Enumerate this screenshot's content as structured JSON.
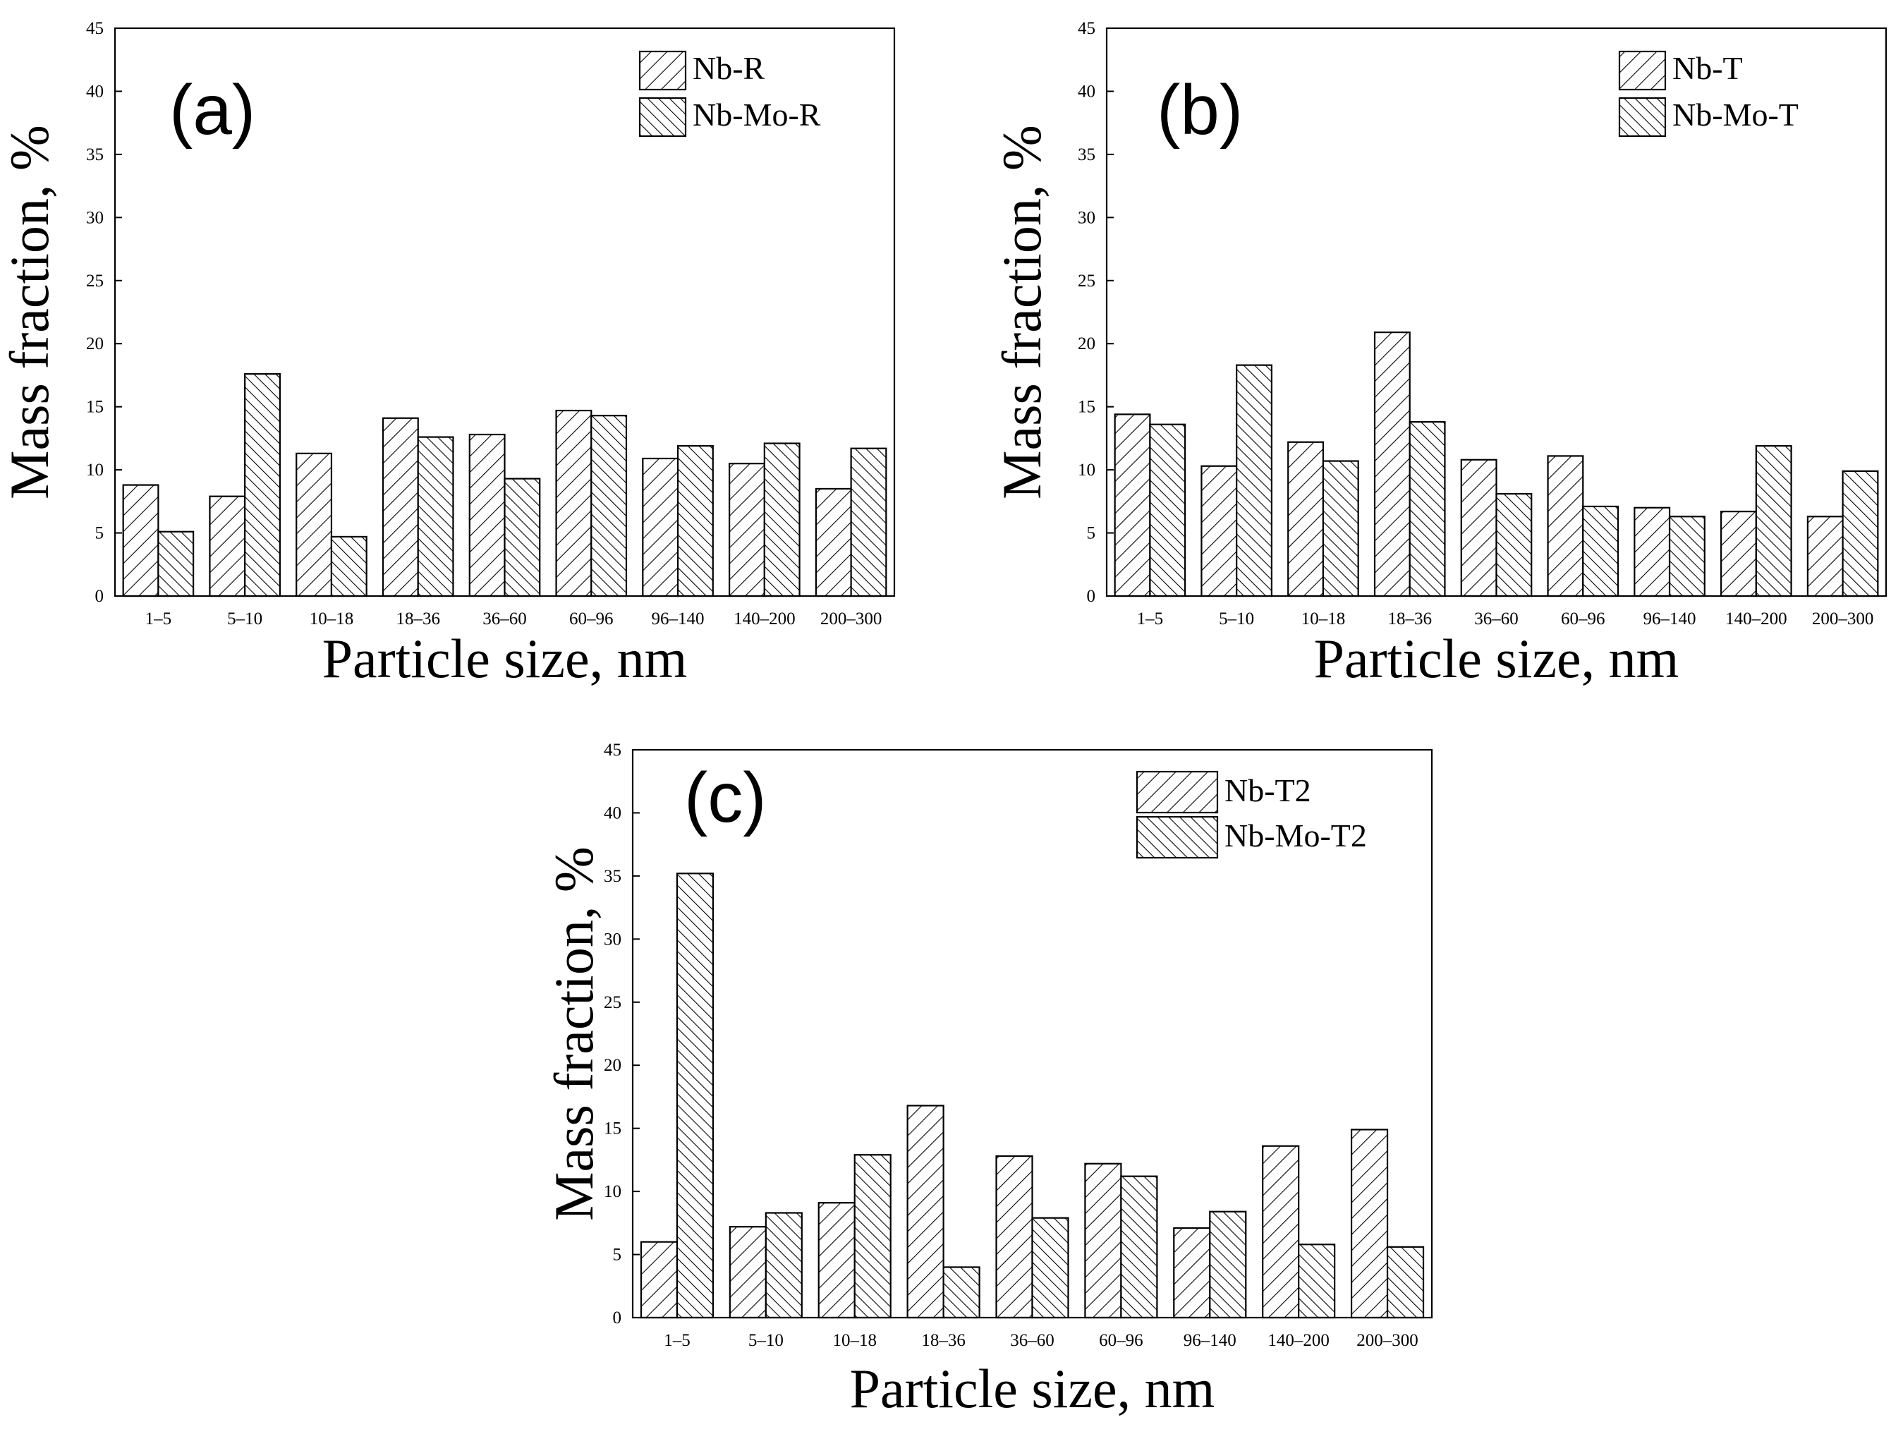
{
  "chart_data": [
    {
      "type": "bar",
      "panel_label": "(a)",
      "xlabel": "Particle size, nm",
      "ylabel": "Mass fraction, %",
      "ylim": [
        0,
        45
      ],
      "yticks": [
        0,
        5,
        10,
        15,
        20,
        25,
        30,
        35,
        40,
        45
      ],
      "categories": [
        "1–5",
        "5–10",
        "10–18",
        "18–36",
        "36–60",
        "60–96",
        "96–140",
        "140–200",
        "200–300"
      ],
      "series": [
        {
          "name": "Nb-R",
          "hatch": "forward",
          "values": [
            8.8,
            7.9,
            11.3,
            14.1,
            12.8,
            14.7,
            10.9,
            10.5,
            8.5
          ]
        },
        {
          "name": "Nb-Mo-R",
          "hatch": "backward",
          "values": [
            5.1,
            17.6,
            4.7,
            12.6,
            9.3,
            14.3,
            11.9,
            12.1,
            11.7
          ]
        }
      ],
      "legend": "top-right"
    },
    {
      "type": "bar",
      "panel_label": "(b)",
      "xlabel": "Particle size, nm",
      "ylabel": "Mass fraction, %",
      "ylim": [
        0,
        45
      ],
      "yticks": [
        0,
        5,
        10,
        15,
        20,
        25,
        30,
        35,
        40,
        45
      ],
      "categories": [
        "1–5",
        "5–10",
        "10–18",
        "18–36",
        "36–60",
        "60–96",
        "96–140",
        "140–200",
        "200–300"
      ],
      "series": [
        {
          "name": "Nb-T",
          "hatch": "forward",
          "values": [
            14.4,
            10.3,
            12.2,
            20.9,
            10.8,
            11.1,
            7.0,
            6.7,
            6.3
          ]
        },
        {
          "name": "Nb-Mo-T",
          "hatch": "backward",
          "values": [
            13.6,
            18.3,
            10.7,
            13.8,
            8.1,
            7.1,
            6.3,
            11.9,
            9.9
          ]
        }
      ],
      "legend": "top-right"
    },
    {
      "type": "bar",
      "panel_label": "(c)",
      "xlabel": "Particle size, nm",
      "ylabel": "Mass fraction, %",
      "ylim": [
        0,
        45
      ],
      "yticks": [
        0,
        5,
        10,
        15,
        20,
        25,
        30,
        35,
        40,
        45
      ],
      "categories": [
        "1–5",
        "5–10",
        "10–18",
        "18–36",
        "36–60",
        "60–96",
        "96–140",
        "140–200",
        "200–300"
      ],
      "series": [
        {
          "name": "Nb-T2",
          "hatch": "forward",
          "values": [
            6.0,
            7.2,
            9.1,
            16.8,
            12.8,
            12.2,
            7.1,
            13.6,
            14.9
          ]
        },
        {
          "name": "Nb-Mo-T2",
          "hatch": "backward",
          "values": [
            35.2,
            8.3,
            12.9,
            4.0,
            7.9,
            11.2,
            8.4,
            5.8,
            5.6
          ]
        }
      ],
      "legend": "top-right"
    }
  ]
}
